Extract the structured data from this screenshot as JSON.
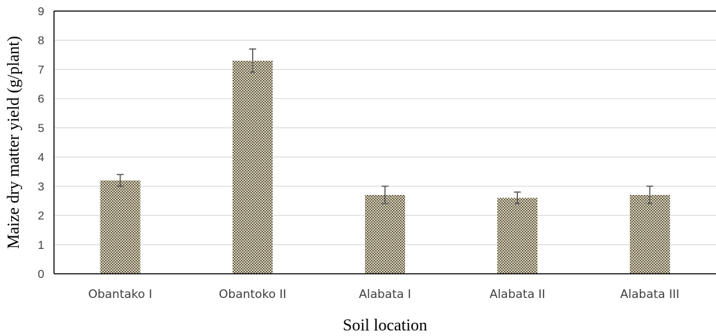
{
  "chart_data": {
    "type": "bar",
    "categories": [
      "Obantako I",
      "Obantoko II",
      "Alabata I",
      "Alabata II",
      "Alabata III"
    ],
    "values": [
      3.2,
      7.3,
      2.7,
      2.6,
      2.7
    ],
    "error_upper": [
      3.4,
      7.7,
      3.0,
      2.8,
      3.0
    ],
    "error_lower": [
      3.0,
      6.9,
      2.4,
      2.4,
      2.4
    ],
    "xlabel": "Soil location",
    "ylabel": "Maize dry matter yield (g/plant)",
    "ylim": [
      0,
      9
    ],
    "yticks": [
      0,
      1,
      2,
      3,
      4,
      5,
      6,
      7,
      8,
      9
    ],
    "grid": true,
    "legend": "none",
    "colors": {
      "bar_fill": "#d8cfb0",
      "bar_pattern": "#1a1a1a",
      "error_bar": "#555555",
      "grid": "#d9d9d9",
      "axis": "#000000"
    }
  }
}
